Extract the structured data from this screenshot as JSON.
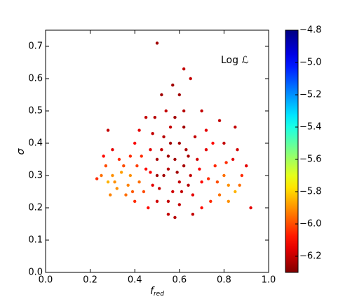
{
  "chart_data": {
    "type": "scatter",
    "xlabel": {
      "main": "f",
      "sub": "red"
    },
    "ylabel": "σ",
    "annotation": "Log ℒ",
    "xlim": [
      0,
      1
    ],
    "ylim": [
      0,
      0.75
    ],
    "xticks": [
      {
        "value": 0,
        "label": "0.0"
      },
      0.2,
      0.4,
      0.6,
      0.8,
      {
        "value": 1,
        "label": "1.0"
      }
    ],
    "yticks": [
      {
        "value": 0,
        "label": "0.0"
      },
      0.1,
      0.2,
      0.3,
      0.4,
      0.5,
      0.6,
      0.7
    ],
    "colormap": "jet_r",
    "clim": [
      -6.3,
      -4.8
    ],
    "cticks": [
      {
        "value": -4.8,
        "label": "−4.8"
      },
      {
        "value": -5.0,
        "label": "−5.0"
      },
      {
        "value": -5.2,
        "label": "−5.2"
      },
      {
        "value": -5.4,
        "label": "−5.4"
      },
      {
        "value": -5.6,
        "label": "−5.6"
      },
      {
        "value": -5.8,
        "label": "−5.8"
      },
      {
        "value": -6.0,
        "label": "−6.0"
      },
      {
        "value": -6.2,
        "label": "−6.2"
      }
    ],
    "x": [
      0.5,
      0.55,
      0.6,
      0.58,
      0.52,
      0.62,
      0.57,
      0.48,
      0.65,
      0.53,
      0.6,
      0.56,
      0.63,
      0.5,
      0.45,
      0.47,
      0.68,
      0.7,
      0.66,
      0.55,
      0.5,
      0.6,
      0.58,
      0.62,
      0.54,
      0.6,
      0.57,
      0.65,
      0.52,
      0.5,
      0.62,
      0.7,
      0.45,
      0.42,
      0.72,
      0.75,
      0.4,
      0.38,
      0.35,
      0.3,
      0.28,
      0.25,
      0.32,
      0.36,
      0.4,
      0.42,
      0.38,
      0.33,
      0.3,
      0.28,
      0.44,
      0.46,
      0.8,
      0.82,
      0.85,
      0.78,
      0.88,
      0.76,
      0.84,
      0.8,
      0.85,
      0.9,
      0.92,
      0.74,
      0.7,
      0.66,
      0.55,
      0.58,
      0.72,
      0.67,
      0.48,
      0.43,
      0.37,
      0.34,
      0.27,
      0.23,
      0.29,
      0.82,
      0.87,
      0.86,
      0.78,
      0.62,
      0.56,
      0.53,
      0.59,
      0.64,
      0.51,
      0.47,
      0.69,
      0.73,
      0.77,
      0.41,
      0.39,
      0.31,
      0.26,
      0.81,
      0.64,
      0.55,
      0.61,
      0.49
    ],
    "values": [
      0.3,
      0.32,
      0.28,
      0.35,
      0.38,
      0.33,
      0.25,
      0.27,
      0.3,
      0.42,
      0.4,
      0.45,
      0.38,
      0.35,
      0.32,
      0.38,
      0.35,
      0.28,
      0.24,
      0.22,
      0.22,
      0.21,
      0.48,
      0.5,
      0.5,
      0.55,
      0.58,
      0.6,
      0.55,
      0.71,
      0.63,
      0.5,
      0.48,
      0.44,
      0.44,
      0.4,
      0.4,
      0.36,
      0.33,
      0.3,
      0.28,
      0.3,
      0.26,
      0.24,
      0.22,
      0.28,
      0.3,
      0.35,
      0.38,
      0.44,
      0.25,
      0.2,
      0.3,
      0.27,
      0.25,
      0.24,
      0.3,
      0.33,
      0.35,
      0.4,
      0.45,
      0.33,
      0.2,
      0.22,
      0.2,
      0.18,
      0.18,
      0.17,
      0.38,
      0.42,
      0.43,
      0.36,
      0.27,
      0.31,
      0.33,
      0.29,
      0.24,
      0.22,
      0.27,
      0.38,
      0.47,
      0.45,
      0.4,
      0.3,
      0.31,
      0.27,
      0.26,
      0.31,
      0.32,
      0.29,
      0.28,
      0.33,
      0.25,
      0.28,
      0.36,
      0.34,
      0.36,
      0.36,
      0.25,
      0.48
    ],
    "color_values": [
      -6.25,
      -6.22,
      -6.2,
      -6.25,
      -6.2,
      -6.24,
      -6.18,
      -6.15,
      -6.2,
      -6.22,
      -6.25,
      -6.2,
      -6.23,
      -6.24,
      -6.1,
      -6.15,
      -6.18,
      -6.1,
      -6.15,
      -6.2,
      -6.18,
      -6.2,
      -6.25,
      -6.22,
      -6.2,
      -6.25,
      -6.25,
      -6.2,
      -6.25,
      -6.25,
      -6.2,
      -6.2,
      -6.2,
      -6.15,
      -6.15,
      -6.1,
      -6.12,
      -6.05,
      -6.0,
      -5.9,
      -5.85,
      -5.95,
      -5.9,
      -5.95,
      -6.05,
      -5.95,
      -5.9,
      -6.05,
      -6.15,
      -6.2,
      -6.0,
      -6.1,
      -5.95,
      -5.9,
      -5.85,
      -5.95,
      -6.05,
      -6.05,
      -6.15,
      -6.2,
      -6.2,
      -6.15,
      -6.15,
      -6.05,
      -6.1,
      -6.2,
      -6.2,
      -6.22,
      -6.15,
      -6.2,
      -6.2,
      -6.05,
      -5.92,
      -5.88,
      -6.0,
      -6.05,
      -5.92,
      -5.9,
      -5.95,
      -6.18,
      -6.2,
      -6.25,
      -6.25,
      -6.25,
      -6.25,
      -6.22,
      -6.2,
      -6.12,
      -6.12,
      -6.05,
      -6.0,
      -6.02,
      -5.98,
      -5.9,
      -6.1,
      -6.05,
      -6.24,
      -6.25,
      -6.2,
      -6.22
    ]
  }
}
